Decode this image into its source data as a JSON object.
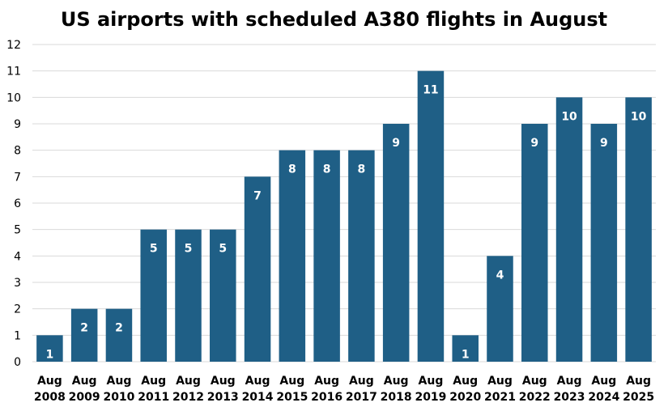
{
  "chart_data": {
    "type": "bar",
    "title": "US airports with scheduled A380 flights in August",
    "categories": [
      [
        "Aug",
        "2008"
      ],
      [
        "Aug",
        "2009"
      ],
      [
        "Aug",
        "2010"
      ],
      [
        "Aug",
        "2011"
      ],
      [
        "Aug",
        "2012"
      ],
      [
        "Aug",
        "2013"
      ],
      [
        "Aug",
        "2014"
      ],
      [
        "Aug",
        "2015"
      ],
      [
        "Aug",
        "2016"
      ],
      [
        "Aug",
        "2017"
      ],
      [
        "Aug",
        "2018"
      ],
      [
        "Aug",
        "2019"
      ],
      [
        "Aug",
        "2020"
      ],
      [
        "Aug",
        "2021"
      ],
      [
        "Aug",
        "2022"
      ],
      [
        "Aug",
        "2023"
      ],
      [
        "Aug",
        "2024"
      ],
      [
        "Aug",
        "2025"
      ]
    ],
    "values": [
      1,
      2,
      2,
      5,
      5,
      5,
      7,
      8,
      8,
      8,
      9,
      11,
      1,
      4,
      9,
      10,
      9,
      10
    ],
    "ylim": [
      0,
      12
    ],
    "yticks": [
      0,
      1,
      2,
      3,
      4,
      5,
      6,
      7,
      8,
      9,
      10,
      11,
      12
    ],
    "grid": true,
    "legend": "none",
    "bar_color": "#1f5f86",
    "grid_color": "#d9d9d9",
    "xlabel": "",
    "ylabel": ""
  }
}
